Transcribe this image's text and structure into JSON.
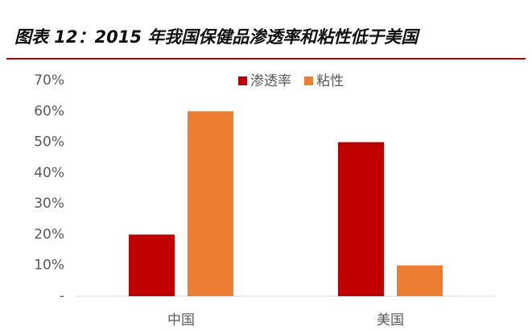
{
  "chart_data": {
    "type": "bar",
    "title": "图表 12：2015 年我国保健品渗透率和粘性低于美国",
    "categories": [
      "中国",
      "美国"
    ],
    "series": [
      {
        "name": "渗透率",
        "color": "#c00000",
        "values": [
          20,
          50
        ]
      },
      {
        "name": "粘性",
        "color": "#ed7d31",
        "values": [
          60,
          10
        ]
      }
    ],
    "ylim": [
      0,
      70
    ],
    "yticks": [
      {
        "value": 0,
        "label": "-"
      },
      {
        "value": 10,
        "label": "10%"
      },
      {
        "value": 20,
        "label": "20%"
      },
      {
        "value": 30,
        "label": "30%"
      },
      {
        "value": 40,
        "label": "40%"
      },
      {
        "value": 50,
        "label": "50%"
      },
      {
        "value": 60,
        "label": "60%"
      },
      {
        "value": 70,
        "label": "70%"
      }
    ],
    "grid": false,
    "legend": "top"
  }
}
